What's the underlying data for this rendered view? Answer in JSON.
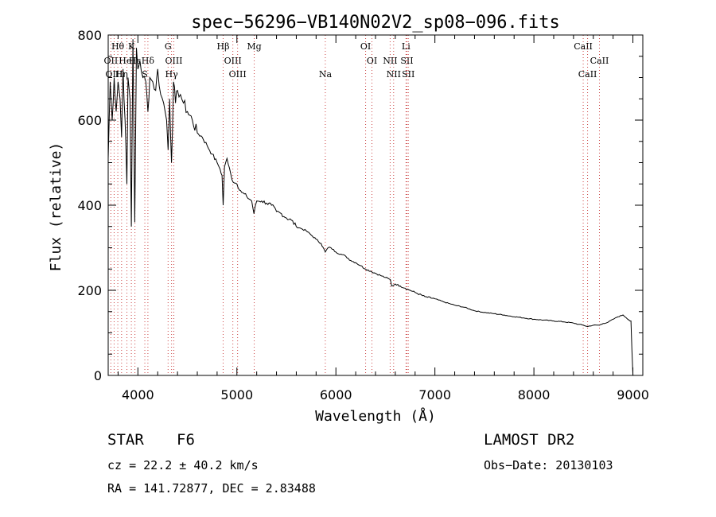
{
  "chart_data": {
    "type": "line",
    "title": "spec−56296−VB140N02V2_sp08−096.fits",
    "xlabel": "Wavelength (Å)",
    "ylabel": "Flux (relative)",
    "xlim": [
      3700,
      9100
    ],
    "ylim": [
      0,
      800
    ],
    "xticks": [
      4000,
      5000,
      6000,
      7000,
      8000,
      9000
    ],
    "yticks": [
      0,
      200,
      400,
      600,
      800
    ],
    "grid": false,
    "series": [
      {
        "x": [
          3700,
          3720,
          3740,
          3760,
          3780,
          3800,
          3820,
          3835,
          3850,
          3870,
          3889,
          3900,
          3920,
          3934,
          3950,
          3968,
          3985,
          4000,
          4020,
          4050,
          4080,
          4101,
          4120,
          4150,
          4180,
          4200,
          4230,
          4260,
          4290,
          4305,
          4320,
          4340,
          4360,
          4380,
          4400,
          4430,
          4460,
          4500,
          4550,
          4600,
          4650,
          4700,
          4750,
          4800,
          4830,
          4850,
          4861,
          4875,
          4900,
          4950,
          5000,
          5050,
          5100,
          5150,
          5172,
          5200,
          5250,
          5300,
          5350,
          5400,
          5450,
          5500,
          5550,
          5600,
          5650,
          5700,
          5750,
          5800,
          5850,
          5893,
          5920,
          5950,
          6000,
          6050,
          6100,
          6150,
          6200,
          6250,
          6300,
          6350,
          6400,
          6450,
          6500,
          6550,
          6563,
          6600,
          6650,
          6700,
          6750,
          6800,
          6900,
          7000,
          7100,
          7200,
          7300,
          7400,
          7500,
          7600,
          7700,
          7800,
          7900,
          8000,
          8100,
          8200,
          8300,
          8400,
          8450,
          8500,
          8542,
          8600,
          8662,
          8700,
          8750,
          8800,
          8850,
          8900,
          8930,
          8960,
          8980,
          8990,
          9000
        ],
        "y": [
          510,
          690,
          600,
          700,
          620,
          690,
          650,
          560,
          720,
          600,
          450,
          700,
          650,
          350,
          790,
          360,
          770,
          720,
          740,
          700,
          690,
          620,
          700,
          690,
          670,
          720,
          660,
          640,
          600,
          530,
          650,
          500,
          690,
          640,
          670,
          660,
          640,
          620,
          600,
          570,
          560,
          540,
          520,
          500,
          485,
          470,
          400,
          490,
          510,
          460,
          450,
          430,
          420,
          410,
          380,
          410,
          410,
          405,
          400,
          385,
          380,
          370,
          365,
          350,
          345,
          340,
          330,
          320,
          310,
          290,
          300,
          300,
          290,
          285,
          280,
          270,
          265,
          258,
          250,
          245,
          240,
          235,
          230,
          225,
          210,
          215,
          210,
          205,
          200,
          195,
          185,
          180,
          172,
          165,
          160,
          152,
          148,
          145,
          142,
          138,
          135,
          132,
          130,
          128,
          126,
          123,
          120,
          118,
          115,
          118,
          118,
          122,
          125,
          132,
          138,
          142,
          136,
          130,
          128,
          60,
          0
        ]
      }
    ],
    "line_markers": [
      {
        "label": "Hθ",
        "wavelength": 3797,
        "row": 0
      },
      {
        "label": "K",
        "wavelength": 3934,
        "row": 0
      },
      {
        "label": "G",
        "wavelength": 4305,
        "row": 0
      },
      {
        "label": "Hβ",
        "wavelength": 4861,
        "row": 0
      },
      {
        "label": "Mg",
        "wavelength": 5175,
        "row": 0
      },
      {
        "label": "OI",
        "wavelength": 6300,
        "row": 0
      },
      {
        "label": "Li",
        "wavelength": 6708,
        "row": 0
      },
      {
        "label": "CaII",
        "wavelength": 8498,
        "row": 0
      },
      {
        "label": "OII",
        "wavelength": 3727,
        "row": 1
      },
      {
        "label": "HeI",
        "wavelength": 3889,
        "row": 1
      },
      {
        "label": "Hε",
        "wavelength": 3970,
        "row": 1
      },
      {
        "label": "Hδ",
        "wavelength": 4101,
        "row": 1
      },
      {
        "label": "OIII",
        "wavelength": 4363,
        "row": 1
      },
      {
        "label": "OIII",
        "wavelength": 4959,
        "row": 1
      },
      {
        "label": "OI",
        "wavelength": 6364,
        "row": 1
      },
      {
        "label": "NII",
        "wavelength": 6548,
        "row": 1
      },
      {
        "label": "SII",
        "wavelength": 6717,
        "row": 1
      },
      {
        "label": "CaII",
        "wavelength": 8662,
        "row": 1
      },
      {
        "label": "OIII",
        "wavelength": 3760,
        "row": 2
      },
      {
        "label": "Hη",
        "wavelength": 3835,
        "row": 2
      },
      {
        "label": "S",
        "wavelength": 4070,
        "row": 2
      },
      {
        "label": "Hγ",
        "wavelength": 4340,
        "row": 2
      },
      {
        "label": "OIII",
        "wavelength": 5007,
        "row": 2
      },
      {
        "label": "Na",
        "wavelength": 5893,
        "row": 2
      },
      {
        "label": "NII",
        "wavelength": 6583,
        "row": 2
      },
      {
        "label": "SII",
        "wavelength": 6731,
        "row": 2
      },
      {
        "label": "CaII",
        "wavelength": 8542,
        "row": 2
      }
    ],
    "colors": {
      "line": "#000000",
      "marker": "#cc4444"
    }
  },
  "info": {
    "object_type": "STAR",
    "spectral_class": "F6",
    "survey": "LAMOST DR2",
    "redshift": "cz = 22.2 ± 40.2 km/s",
    "obs_date": "Obs−Date: 20130103",
    "coords": "RA = 141.72877, DEC =   2.83488"
  }
}
